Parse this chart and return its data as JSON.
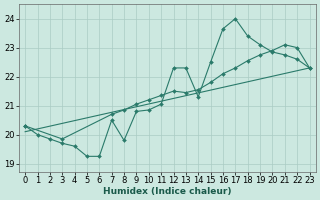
{
  "background_color": "#cce8e0",
  "grid_color": "#aaccC4",
  "line_color": "#2a7a6a",
  "marker_color": "#2a7a6a",
  "xlabel": "Humidex (Indice chaleur)",
  "ylabel_ticks": [
    19,
    20,
    21,
    22,
    23,
    24
  ],
  "xlim": [
    -0.5,
    23.5
  ],
  "ylim": [
    18.7,
    24.5
  ],
  "series1_x": [
    0,
    1,
    2,
    3,
    4,
    5,
    6,
    7,
    8,
    9,
    10,
    11,
    12,
    13,
    14,
    15,
    16,
    17,
    18,
    19,
    20,
    21,
    22,
    23
  ],
  "series1_y": [
    20.3,
    20.0,
    19.85,
    19.7,
    19.6,
    19.25,
    19.25,
    20.5,
    19.8,
    20.8,
    20.85,
    21.05,
    22.3,
    22.3,
    21.3,
    22.5,
    23.65,
    24.0,
    23.4,
    23.1,
    22.85,
    22.75,
    22.6,
    22.3
  ],
  "series2_x": [
    0,
    3,
    7,
    8,
    9,
    10,
    11,
    12,
    13,
    14,
    15,
    16,
    17,
    18,
    19,
    20,
    21,
    22,
    23
  ],
  "series2_y": [
    20.3,
    19.85,
    20.7,
    20.85,
    21.05,
    21.2,
    21.35,
    21.5,
    21.45,
    21.55,
    21.8,
    22.1,
    22.3,
    22.55,
    22.75,
    22.9,
    23.1,
    23.0,
    22.3
  ],
  "series3_x": [
    0,
    23
  ],
  "series3_y": [
    20.1,
    22.3
  ],
  "xtick_labels": [
    "0",
    "1",
    "2",
    "3",
    "4",
    "5",
    "6",
    "7",
    "8",
    "9",
    "10",
    "11",
    "12",
    "13",
    "14",
    "15",
    "16",
    "17",
    "18",
    "19",
    "20",
    "21",
    "22",
    "23"
  ],
  "font_size_axis": 6.5,
  "font_size_ticks": 6.0
}
